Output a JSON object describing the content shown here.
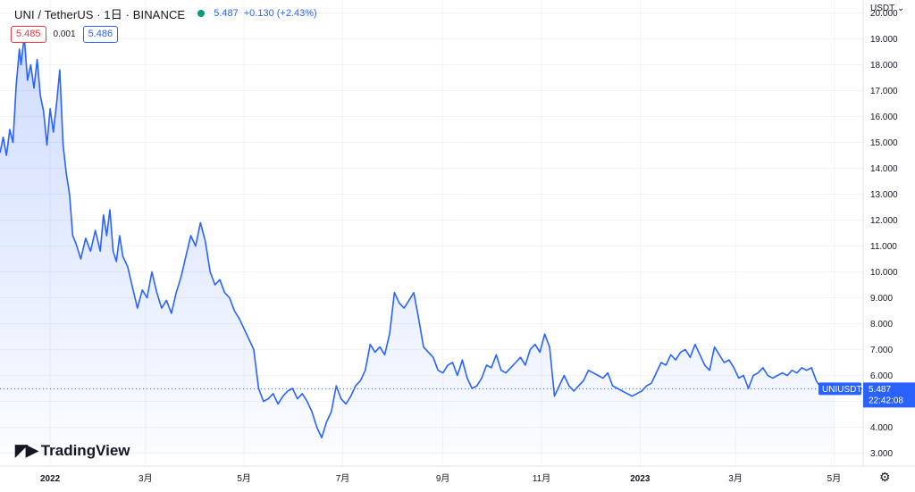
{
  "header": {
    "symbol": "UNI / TetherUS · 1日 · BINANCE",
    "last": "5.487",
    "change": "+0.130 (+2.43%)"
  },
  "bid_ask": {
    "bid": "5.485",
    "spread": "0.001",
    "ask": "5.486"
  },
  "price_axis": {
    "currency": "USDT"
  },
  "last_label": {
    "symbol": "UNIUSDT",
    "price": "5.487",
    "time": "22:42:08"
  },
  "brand": {
    "name": "TradingView"
  },
  "icons": {
    "settings": "gear-icon",
    "currency_dropdown": "chevron-down-icon",
    "logo": "tradingview-logo-icon"
  },
  "colors": {
    "line": "#2962ff",
    "up": "#089981",
    "down": "#f23645",
    "fill": "#e3ebff",
    "grid": "#f0f3fa"
  },
  "chart_data": {
    "type": "area",
    "title": "",
    "xlabel": "",
    "ylabel": "",
    "ylim": [
      2.5,
      20.5
    ],
    "yticks": [
      "3.000",
      "4.000",
      "5.000",
      "6.000",
      "7.000",
      "8.000",
      "9.000",
      "10.000",
      "11.000",
      "12.000",
      "13.000",
      "14.000",
      "15.000",
      "16.000",
      "17.000",
      "18.000",
      "19.000",
      "20.000"
    ],
    "xlim": [
      "2021-12-01",
      "2023-05-19"
    ],
    "xticks": [
      {
        "date": "2022-01-01",
        "label": "2022",
        "bold": true
      },
      {
        "date": "2022-03-01",
        "label": "3月"
      },
      {
        "date": "2022-05-01",
        "label": "5月"
      },
      {
        "date": "2022-07-01",
        "label": "7月"
      },
      {
        "date": "2022-09-01",
        "label": "9月"
      },
      {
        "date": "2022-11-01",
        "label": "11月"
      },
      {
        "date": "2023-01-01",
        "label": "2023",
        "bold": true
      },
      {
        "date": "2023-03-01",
        "label": "3月"
      },
      {
        "date": "2023-05-01",
        "label": "5月"
      }
    ],
    "series": [
      {
        "values": [
          [
            "2021-12-01",
            14.6
          ],
          [
            "2021-12-03",
            15.2
          ],
          [
            "2021-12-05",
            14.5
          ],
          [
            "2021-12-07",
            15.5
          ],
          [
            "2021-12-09",
            15.0
          ],
          [
            "2021-12-11",
            17.2
          ],
          [
            "2021-12-13",
            18.6
          ],
          [
            "2021-12-14",
            18.0
          ],
          [
            "2021-12-16",
            19.1
          ],
          [
            "2021-12-18",
            17.4
          ],
          [
            "2021-12-20",
            18.0
          ],
          [
            "2021-12-22",
            17.1
          ],
          [
            "2021-12-24",
            18.2
          ],
          [
            "2021-12-26",
            16.8
          ],
          [
            "2021-12-28",
            16.2
          ],
          [
            "2021-12-30",
            14.9
          ],
          [
            "2022-01-01",
            16.3
          ],
          [
            "2022-01-03",
            15.4
          ],
          [
            "2022-01-05",
            16.5
          ],
          [
            "2022-01-07",
            17.8
          ],
          [
            "2022-01-09",
            14.9
          ],
          [
            "2022-01-11",
            13.8
          ],
          [
            "2022-01-13",
            13.0
          ],
          [
            "2022-01-15",
            11.4
          ],
          [
            "2022-01-17",
            11.1
          ],
          [
            "2022-01-20",
            10.5
          ],
          [
            "2022-01-23",
            11.3
          ],
          [
            "2022-01-26",
            10.8
          ],
          [
            "2022-01-29",
            11.6
          ],
          [
            "2022-02-01",
            10.8
          ],
          [
            "2022-02-03",
            12.2
          ],
          [
            "2022-02-05",
            11.4
          ],
          [
            "2022-02-07",
            12.4
          ],
          [
            "2022-02-09",
            10.8
          ],
          [
            "2022-02-11",
            10.4
          ],
          [
            "2022-02-13",
            11.4
          ],
          [
            "2022-02-15",
            10.6
          ],
          [
            "2022-02-18",
            10.2
          ],
          [
            "2022-02-21",
            9.4
          ],
          [
            "2022-02-24",
            8.6
          ],
          [
            "2022-02-27",
            9.3
          ],
          [
            "2022-03-02",
            9.0
          ],
          [
            "2022-03-05",
            10.0
          ],
          [
            "2022-03-08",
            9.2
          ],
          [
            "2022-03-11",
            8.6
          ],
          [
            "2022-03-14",
            8.9
          ],
          [
            "2022-03-17",
            8.4
          ],
          [
            "2022-03-20",
            9.2
          ],
          [
            "2022-03-23",
            9.8
          ],
          [
            "2022-03-26",
            10.6
          ],
          [
            "2022-03-29",
            11.4
          ],
          [
            "2022-04-01",
            11.0
          ],
          [
            "2022-04-04",
            11.9
          ],
          [
            "2022-04-07",
            11.2
          ],
          [
            "2022-04-10",
            10.0
          ],
          [
            "2022-04-13",
            9.5
          ],
          [
            "2022-04-16",
            9.7
          ],
          [
            "2022-04-19",
            9.2
          ],
          [
            "2022-04-22",
            9.0
          ],
          [
            "2022-04-25",
            8.5
          ],
          [
            "2022-04-28",
            8.2
          ],
          [
            "2022-05-01",
            7.8
          ],
          [
            "2022-05-04",
            7.4
          ],
          [
            "2022-05-07",
            7.0
          ],
          [
            "2022-05-10",
            5.5
          ],
          [
            "2022-05-13",
            5.0
          ],
          [
            "2022-05-16",
            5.1
          ],
          [
            "2022-05-19",
            5.3
          ],
          [
            "2022-05-22",
            4.9
          ],
          [
            "2022-05-25",
            5.2
          ],
          [
            "2022-05-28",
            5.4
          ],
          [
            "2022-05-31",
            5.5
          ],
          [
            "2022-06-03",
            5.1
          ],
          [
            "2022-06-06",
            5.3
          ],
          [
            "2022-06-09",
            5.0
          ],
          [
            "2022-06-12",
            4.6
          ],
          [
            "2022-06-15",
            4.0
          ],
          [
            "2022-06-18",
            3.6
          ],
          [
            "2022-06-21",
            4.2
          ],
          [
            "2022-06-24",
            4.6
          ],
          [
            "2022-06-27",
            5.6
          ],
          [
            "2022-06-30",
            5.1
          ],
          [
            "2022-07-03",
            4.9
          ],
          [
            "2022-07-06",
            5.2
          ],
          [
            "2022-07-09",
            5.6
          ],
          [
            "2022-07-12",
            5.8
          ],
          [
            "2022-07-15",
            6.2
          ],
          [
            "2022-07-18",
            7.2
          ],
          [
            "2022-07-21",
            6.9
          ],
          [
            "2022-07-24",
            7.1
          ],
          [
            "2022-07-27",
            6.8
          ],
          [
            "2022-07-30",
            7.6
          ],
          [
            "2022-08-02",
            9.2
          ],
          [
            "2022-08-05",
            8.8
          ],
          [
            "2022-08-08",
            8.6
          ],
          [
            "2022-08-11",
            8.9
          ],
          [
            "2022-08-14",
            9.2
          ],
          [
            "2022-08-17",
            8.2
          ],
          [
            "2022-08-20",
            7.1
          ],
          [
            "2022-08-23",
            6.9
          ],
          [
            "2022-08-26",
            6.7
          ],
          [
            "2022-08-29",
            6.2
          ],
          [
            "2022-09-01",
            6.1
          ],
          [
            "2022-09-04",
            6.4
          ],
          [
            "2022-09-07",
            6.5
          ],
          [
            "2022-09-10",
            6.0
          ],
          [
            "2022-09-13",
            6.6
          ],
          [
            "2022-09-16",
            5.9
          ],
          [
            "2022-09-19",
            5.5
          ],
          [
            "2022-09-22",
            5.6
          ],
          [
            "2022-09-25",
            5.9
          ],
          [
            "2022-09-28",
            6.4
          ],
          [
            "2022-10-01",
            6.3
          ],
          [
            "2022-10-04",
            6.8
          ],
          [
            "2022-10-07",
            6.2
          ],
          [
            "2022-10-10",
            6.1
          ],
          [
            "2022-10-13",
            6.3
          ],
          [
            "2022-10-16",
            6.5
          ],
          [
            "2022-10-19",
            6.7
          ],
          [
            "2022-10-22",
            6.4
          ],
          [
            "2022-10-25",
            7.0
          ],
          [
            "2022-10-28",
            7.2
          ],
          [
            "2022-10-31",
            6.9
          ],
          [
            "2022-11-03",
            7.6
          ],
          [
            "2022-11-06",
            7.1
          ],
          [
            "2022-11-09",
            5.2
          ],
          [
            "2022-11-12",
            5.6
          ],
          [
            "2022-11-15",
            6.0
          ],
          [
            "2022-11-18",
            5.6
          ],
          [
            "2022-11-21",
            5.4
          ],
          [
            "2022-11-24",
            5.6
          ],
          [
            "2022-11-27",
            5.8
          ],
          [
            "2022-11-30",
            6.2
          ],
          [
            "2022-12-03",
            6.1
          ],
          [
            "2022-12-06",
            6.0
          ],
          [
            "2022-12-09",
            5.9
          ],
          [
            "2022-12-12",
            6.1
          ],
          [
            "2022-12-15",
            5.6
          ],
          [
            "2022-12-18",
            5.5
          ],
          [
            "2022-12-21",
            5.4
          ],
          [
            "2022-12-24",
            5.3
          ],
          [
            "2022-12-27",
            5.2
          ],
          [
            "2022-12-30",
            5.3
          ],
          [
            "2023-01-02",
            5.4
          ],
          [
            "2023-01-05",
            5.6
          ],
          [
            "2023-01-08",
            5.7
          ],
          [
            "2023-01-11",
            6.1
          ],
          [
            "2023-01-14",
            6.5
          ],
          [
            "2023-01-17",
            6.4
          ],
          [
            "2023-01-20",
            6.8
          ],
          [
            "2023-01-23",
            6.6
          ],
          [
            "2023-01-26",
            6.9
          ],
          [
            "2023-01-29",
            7.0
          ],
          [
            "2023-02-01",
            6.7
          ],
          [
            "2023-02-04",
            7.2
          ],
          [
            "2023-02-07",
            6.8
          ],
          [
            "2023-02-10",
            6.4
          ],
          [
            "2023-02-13",
            6.2
          ],
          [
            "2023-02-16",
            7.1
          ],
          [
            "2023-02-19",
            6.8
          ],
          [
            "2023-02-22",
            6.5
          ],
          [
            "2023-02-25",
            6.6
          ],
          [
            "2023-02-28",
            6.3
          ],
          [
            "2023-03-03",
            5.9
          ],
          [
            "2023-03-06",
            6.0
          ],
          [
            "2023-03-09",
            5.5
          ],
          [
            "2023-03-12",
            6.0
          ],
          [
            "2023-03-15",
            6.1
          ],
          [
            "2023-03-18",
            6.3
          ],
          [
            "2023-03-21",
            6.0
          ],
          [
            "2023-03-24",
            5.9
          ],
          [
            "2023-03-27",
            6.0
          ],
          [
            "2023-03-30",
            6.1
          ],
          [
            "2023-04-02",
            6.0
          ],
          [
            "2023-04-05",
            6.2
          ],
          [
            "2023-04-08",
            6.1
          ],
          [
            "2023-04-11",
            6.3
          ],
          [
            "2023-04-14",
            6.2
          ],
          [
            "2023-04-17",
            6.3
          ],
          [
            "2023-04-20",
            5.8
          ],
          [
            "2023-04-23",
            5.5
          ],
          [
            "2023-04-26",
            5.4
          ],
          [
            "2023-04-29",
            5.5
          ],
          [
            "2023-05-01",
            5.487
          ]
        ]
      }
    ]
  }
}
